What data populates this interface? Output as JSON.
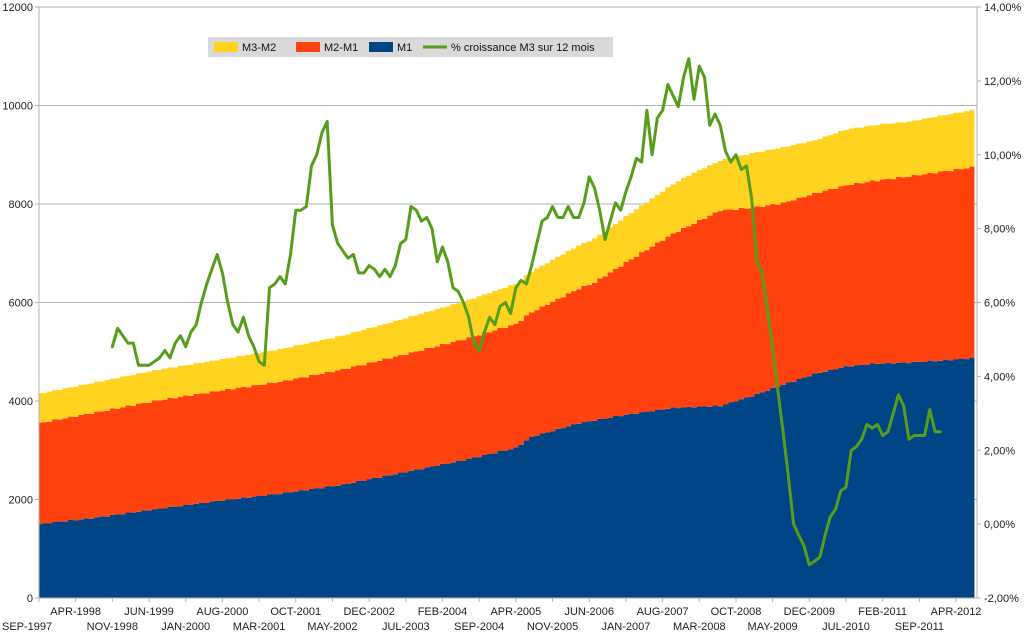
{
  "chart_data": {
    "type": "area",
    "title": "",
    "xlabel": "",
    "ylabel": "",
    "ylim": [
      0,
      12000
    ],
    "y2lim": [
      -2,
      14
    ],
    "y_ticks": [
      "0",
      "2000",
      "4000",
      "6000",
      "8000",
      "10000",
      "12000"
    ],
    "y2_ticks": [
      "-2,00%",
      "0,00%",
      "2,00%",
      "4,00%",
      "6,00%",
      "8,00%",
      "10,00%",
      "12,00%",
      "14,00%"
    ],
    "x_range": [
      "SEP-1997",
      "JUL-2012"
    ],
    "x_ticks": [
      {
        "label": "SEP-1997",
        "date": 1997.667
      },
      {
        "label": "APR-1998",
        "date": 1998.25
      },
      {
        "label": "NOV-1998",
        "date": 1998.833
      },
      {
        "label": "JUN-1999",
        "date": 1999.417
      },
      {
        "label": "JAN-2000",
        "date": 2000.0
      },
      {
        "label": "AUG-2000",
        "date": 2000.583
      },
      {
        "label": "MAR-2001",
        "date": 2001.167
      },
      {
        "label": "OCT-2001",
        "date": 2001.75
      },
      {
        "label": "MAY-2002",
        "date": 2002.333
      },
      {
        "label": "DEC-2002",
        "date": 2002.917
      },
      {
        "label": "JUL-2003",
        "date": 2003.5
      },
      {
        "label": "FEB-2004",
        "date": 2004.083
      },
      {
        "label": "SEP-2004",
        "date": 2004.667
      },
      {
        "label": "APR-2005",
        "date": 2005.25
      },
      {
        "label": "NOV-2005",
        "date": 2005.833
      },
      {
        "label": "JUN-2006",
        "date": 2006.417
      },
      {
        "label": "JAN-2007",
        "date": 2007.0
      },
      {
        "label": "AUG-2007",
        "date": 2007.583
      },
      {
        "label": "MAR-2008",
        "date": 2008.167
      },
      {
        "label": "OCT-2008",
        "date": 2008.75
      },
      {
        "label": "MAY-2009",
        "date": 2009.333
      },
      {
        "label": "DEC-2009",
        "date": 2009.917
      },
      {
        "label": "JUL-2010",
        "date": 2010.5
      },
      {
        "label": "FEB-2011",
        "date": 2011.083
      },
      {
        "label": "SEP-2011",
        "date": 2011.667
      },
      {
        "label": "APR-2012",
        "date": 2012.25
      }
    ],
    "legend": {
      "placement": "top-left",
      "entries": [
        {
          "name": "M3-M2",
          "color": "#FFD320"
        },
        {
          "name": "M2-M1",
          "color": "#FF420E"
        },
        {
          "name": "M1",
          "color": "#004586"
        },
        {
          "name": "% croissance M3 sur 12 mois",
          "color": "#579D1C"
        }
      ]
    },
    "series": [
      {
        "name": "M1",
        "kind": "stacked-area",
        "axis": "left",
        "color": "#004586",
        "points": [
          [
            1997.667,
            1500
          ],
          [
            1998.5,
            1620
          ],
          [
            1999.5,
            1800
          ],
          [
            2000.5,
            1970
          ],
          [
            2001.5,
            2120
          ],
          [
            2002.5,
            2300
          ],
          [
            2003.5,
            2560
          ],
          [
            2004.5,
            2820
          ],
          [
            2005.25,
            3050
          ],
          [
            2005.5,
            3270
          ],
          [
            2006.25,
            3550
          ],
          [
            2007.0,
            3720
          ],
          [
            2007.75,
            3860
          ],
          [
            2008.5,
            3900
          ],
          [
            2009.0,
            4100
          ],
          [
            2009.5,
            4330
          ],
          [
            2010.0,
            4550
          ],
          [
            2010.5,
            4700
          ],
          [
            2011.0,
            4760
          ],
          [
            2011.5,
            4780
          ],
          [
            2012.0,
            4820
          ],
          [
            2012.583,
            4880
          ]
        ]
      },
      {
        "name": "M2-M1",
        "kind": "stacked-area",
        "axis": "left",
        "color": "#FF420E",
        "points": [
          [
            1997.667,
            2050
          ],
          [
            1998.5,
            2130
          ],
          [
            1999.5,
            2200
          ],
          [
            2000.5,
            2230
          ],
          [
            2001.5,
            2270
          ],
          [
            2002.5,
            2340
          ],
          [
            2003.5,
            2390
          ],
          [
            2004.5,
            2460
          ],
          [
            2005.5,
            2530
          ],
          [
            2006.5,
            2800
          ],
          [
            2007.0,
            3090
          ],
          [
            2007.5,
            3390
          ],
          [
            2008.0,
            3680
          ],
          [
            2008.5,
            3970
          ],
          [
            2009.0,
            3820
          ],
          [
            2009.5,
            3690
          ],
          [
            2010.0,
            3660
          ],
          [
            2010.5,
            3680
          ],
          [
            2011.0,
            3720
          ],
          [
            2011.5,
            3780
          ],
          [
            2012.0,
            3830
          ],
          [
            2012.583,
            3880
          ]
        ]
      },
      {
        "name": "M3-M2",
        "kind": "stacked-area",
        "axis": "left",
        "color": "#FFD320",
        "points": [
          [
            1997.667,
            600
          ],
          [
            1998.5,
            610
          ],
          [
            1999.5,
            620
          ],
          [
            2000.5,
            630
          ],
          [
            2001.5,
            660
          ],
          [
            2002.5,
            690
          ],
          [
            2003.5,
            730
          ],
          [
            2004.5,
            770
          ],
          [
            2005.5,
            830
          ],
          [
            2006.5,
            890
          ],
          [
            2007.5,
            980
          ],
          [
            2008.0,
            1030
          ],
          [
            2008.5,
            1010
          ],
          [
            2009.0,
            1110
          ],
          [
            2009.5,
            1130
          ],
          [
            2010.0,
            1080
          ],
          [
            2010.5,
            1130
          ],
          [
            2011.0,
            1130
          ],
          [
            2011.5,
            1110
          ],
          [
            2012.0,
            1140
          ],
          [
            2012.583,
            1160
          ]
        ]
      },
      {
        "name": "% croissance M3 sur 12 mois",
        "kind": "line",
        "axis": "right",
        "color": "#579D1C",
        "points": [
          [
            1998.833,
            4.8
          ],
          [
            1998.917,
            5.3
          ],
          [
            1999.0,
            5.1
          ],
          [
            1999.083,
            4.9
          ],
          [
            1999.167,
            4.9
          ],
          [
            1999.25,
            4.3
          ],
          [
            1999.333,
            4.3
          ],
          [
            1999.417,
            4.3
          ],
          [
            1999.5,
            4.4
          ],
          [
            1999.583,
            4.5
          ],
          [
            1999.667,
            4.7
          ],
          [
            1999.75,
            4.5
          ],
          [
            1999.833,
            4.9
          ],
          [
            1999.917,
            5.1
          ],
          [
            2000.0,
            4.8
          ],
          [
            2000.083,
            5.2
          ],
          [
            2000.167,
            5.4
          ],
          [
            2000.25,
            6.0
          ],
          [
            2000.333,
            6.5
          ],
          [
            2000.417,
            6.9
          ],
          [
            2000.5,
            7.3
          ],
          [
            2000.583,
            6.8
          ],
          [
            2000.667,
            6.0
          ],
          [
            2000.75,
            5.4
          ],
          [
            2000.833,
            5.2
          ],
          [
            2000.917,
            5.6
          ],
          [
            2001.0,
            5.1
          ],
          [
            2001.083,
            4.8
          ],
          [
            2001.167,
            4.4
          ],
          [
            2001.25,
            4.3
          ],
          [
            2001.333,
            6.4
          ],
          [
            2001.417,
            6.5
          ],
          [
            2001.5,
            6.7
          ],
          [
            2001.583,
            6.5
          ],
          [
            2001.667,
            7.3
          ],
          [
            2001.75,
            8.5
          ],
          [
            2001.833,
            8.5
          ],
          [
            2001.917,
            8.6
          ],
          [
            2002.0,
            9.7
          ],
          [
            2002.083,
            10.0
          ],
          [
            2002.167,
            10.6
          ],
          [
            2002.25,
            10.9
          ],
          [
            2002.333,
            8.1
          ],
          [
            2002.417,
            7.6
          ],
          [
            2002.5,
            7.4
          ],
          [
            2002.583,
            7.2
          ],
          [
            2002.667,
            7.3
          ],
          [
            2002.75,
            6.8
          ],
          [
            2002.833,
            6.8
          ],
          [
            2002.917,
            7.0
          ],
          [
            2003.0,
            6.9
          ],
          [
            2003.083,
            6.7
          ],
          [
            2003.167,
            6.9
          ],
          [
            2003.25,
            6.7
          ],
          [
            2003.333,
            7.0
          ],
          [
            2003.417,
            7.6
          ],
          [
            2003.5,
            7.7
          ],
          [
            2003.583,
            8.6
          ],
          [
            2003.667,
            8.5
          ],
          [
            2003.75,
            8.2
          ],
          [
            2003.833,
            8.3
          ],
          [
            2003.917,
            8.0
          ],
          [
            2004.0,
            7.1
          ],
          [
            2004.083,
            7.5
          ],
          [
            2004.167,
            7.1
          ],
          [
            2004.25,
            6.4
          ],
          [
            2004.333,
            6.3
          ],
          [
            2004.417,
            6.0
          ],
          [
            2004.5,
            5.6
          ],
          [
            2004.583,
            4.9
          ],
          [
            2004.667,
            4.7
          ],
          [
            2004.75,
            5.2
          ],
          [
            2004.833,
            5.6
          ],
          [
            2004.917,
            5.4
          ],
          [
            2005.0,
            5.9
          ],
          [
            2005.083,
            6.0
          ],
          [
            2005.167,
            5.7
          ],
          [
            2005.25,
            6.4
          ],
          [
            2005.333,
            6.6
          ],
          [
            2005.417,
            6.5
          ],
          [
            2005.5,
            7.0
          ],
          [
            2005.583,
            7.6
          ],
          [
            2005.667,
            8.2
          ],
          [
            2005.75,
            8.3
          ],
          [
            2005.833,
            8.6
          ],
          [
            2005.917,
            8.3
          ],
          [
            2006.0,
            8.3
          ],
          [
            2006.083,
            8.6
          ],
          [
            2006.167,
            8.3
          ],
          [
            2006.25,
            8.3
          ],
          [
            2006.333,
            8.7
          ],
          [
            2006.417,
            9.4
          ],
          [
            2006.5,
            9.1
          ],
          [
            2006.583,
            8.5
          ],
          [
            2006.667,
            7.7
          ],
          [
            2006.75,
            8.2
          ],
          [
            2006.833,
            8.7
          ],
          [
            2006.917,
            8.5
          ],
          [
            2007.0,
            9.0
          ],
          [
            2007.083,
            9.4
          ],
          [
            2007.167,
            9.9
          ],
          [
            2007.25,
            9.8
          ],
          [
            2007.333,
            11.2
          ],
          [
            2007.417,
            10.0
          ],
          [
            2007.5,
            11.0
          ],
          [
            2007.583,
            11.2
          ],
          [
            2007.667,
            11.9
          ],
          [
            2007.75,
            11.6
          ],
          [
            2007.833,
            11.3
          ],
          [
            2007.917,
            12.1
          ],
          [
            2008.0,
            12.6
          ],
          [
            2008.083,
            11.5
          ],
          [
            2008.167,
            12.4
          ],
          [
            2008.25,
            12.1
          ],
          [
            2008.333,
            10.8
          ],
          [
            2008.417,
            11.1
          ],
          [
            2008.5,
            10.8
          ],
          [
            2008.583,
            10.1
          ],
          [
            2008.667,
            9.8
          ],
          [
            2008.75,
            10.0
          ],
          [
            2008.833,
            9.6
          ],
          [
            2008.917,
            9.7
          ],
          [
            2009.0,
            8.8
          ],
          [
            2009.083,
            7.1
          ],
          [
            2009.167,
            6.8
          ],
          [
            2009.25,
            5.8
          ],
          [
            2009.333,
            4.8
          ],
          [
            2009.417,
            3.6
          ],
          [
            2009.5,
            2.5
          ],
          [
            2009.583,
            1.3
          ],
          [
            2009.667,
            0.0
          ],
          [
            2009.75,
            -0.3
          ],
          [
            2009.833,
            -0.6
          ],
          [
            2009.917,
            -1.1
          ],
          [
            2010.0,
            -1.0
          ],
          [
            2010.083,
            -0.9
          ],
          [
            2010.167,
            -0.3
          ],
          [
            2010.25,
            0.2
          ],
          [
            2010.333,
            0.4
          ],
          [
            2010.417,
            0.9
          ],
          [
            2010.5,
            1.0
          ],
          [
            2010.583,
            2.0
          ],
          [
            2010.667,
            2.1
          ],
          [
            2010.75,
            2.3
          ],
          [
            2010.833,
            2.7
          ],
          [
            2010.917,
            2.6
          ],
          [
            2011.0,
            2.7
          ],
          [
            2011.083,
            2.4
          ],
          [
            2011.167,
            2.5
          ],
          [
            2011.25,
            3.0
          ],
          [
            2011.333,
            3.5
          ],
          [
            2011.417,
            3.2
          ],
          [
            2011.5,
            2.3
          ],
          [
            2011.583,
            2.4
          ],
          [
            2011.667,
            2.4
          ],
          [
            2011.75,
            2.4
          ],
          [
            2011.833,
            3.1
          ],
          [
            2011.917,
            2.5
          ],
          [
            2012.0,
            2.5
          ]
        ]
      }
    ]
  }
}
